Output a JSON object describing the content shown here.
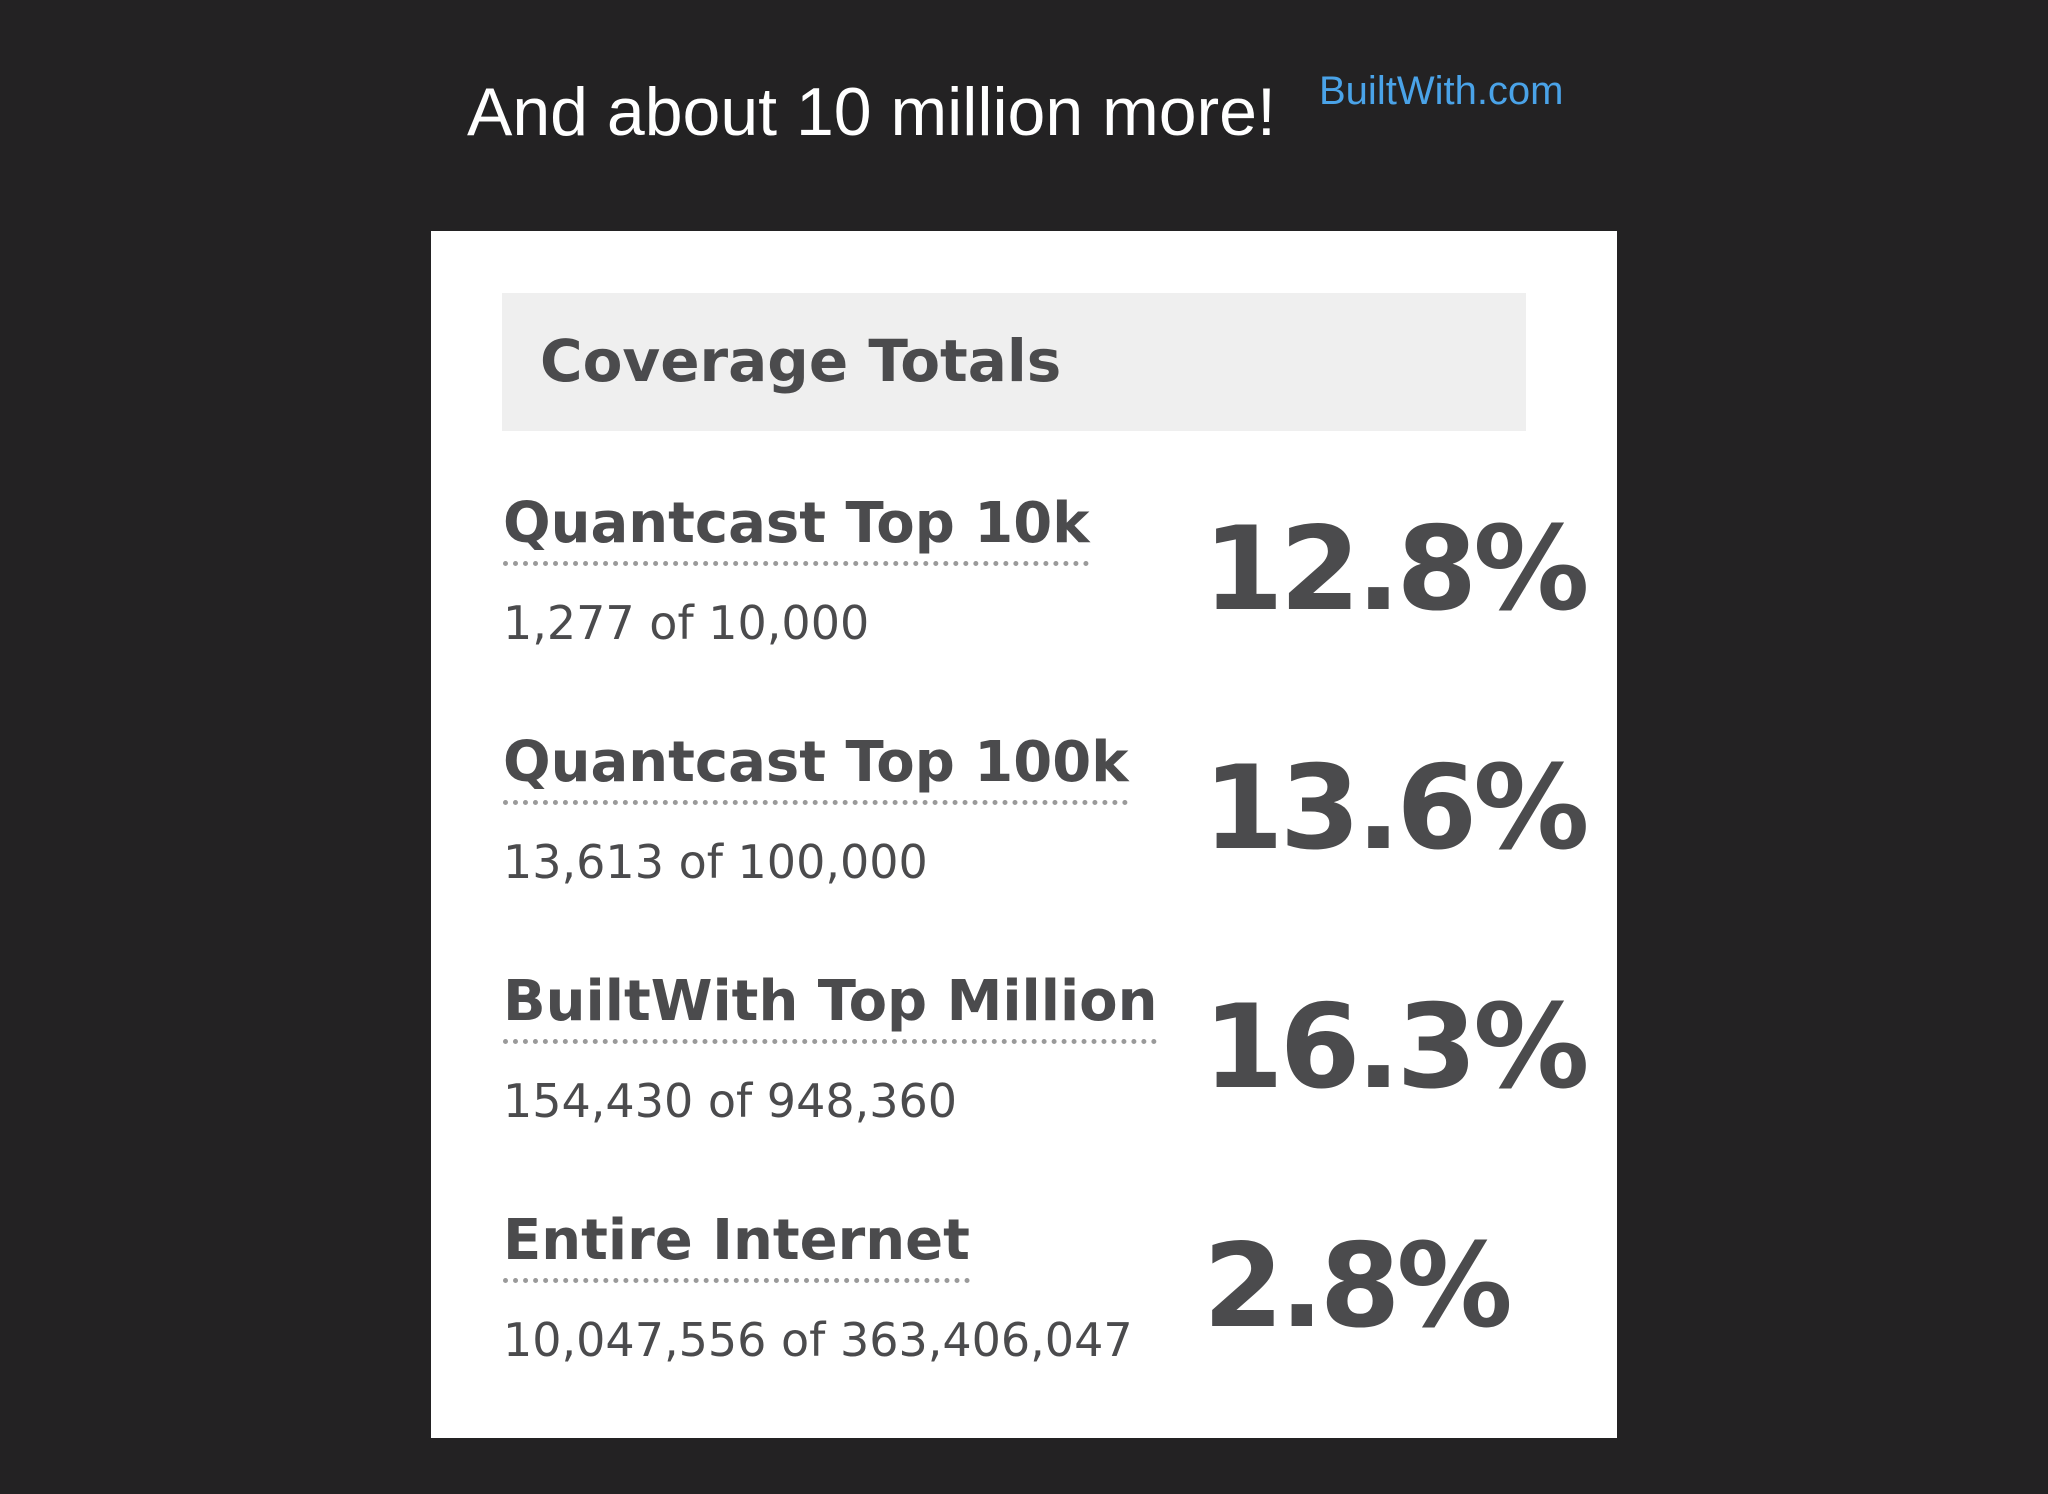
{
  "headline": "And about 10 million more!",
  "source_link": "BuiltWith.com",
  "card": {
    "title": "Coverage Totals",
    "rows": [
      {
        "label": "Quantcast Top 10k",
        "count": "1,277 of 10,000",
        "percent": "12.8%"
      },
      {
        "label": "Quantcast Top 100k",
        "count": "13,613 of 100,000",
        "percent": "13.6%"
      },
      {
        "label": "BuiltWith Top Million",
        "count": "154,430 of 948,360",
        "percent": "16.3%"
      },
      {
        "label": "Entire Internet",
        "count": "10,047,556 of 363,406,047",
        "percent": "2.8%"
      }
    ]
  },
  "colors": {
    "background": "#232223",
    "link": "#4aa3e8",
    "card": "#ffffff",
    "header": "#efefef",
    "text": "#4b4b4d"
  }
}
